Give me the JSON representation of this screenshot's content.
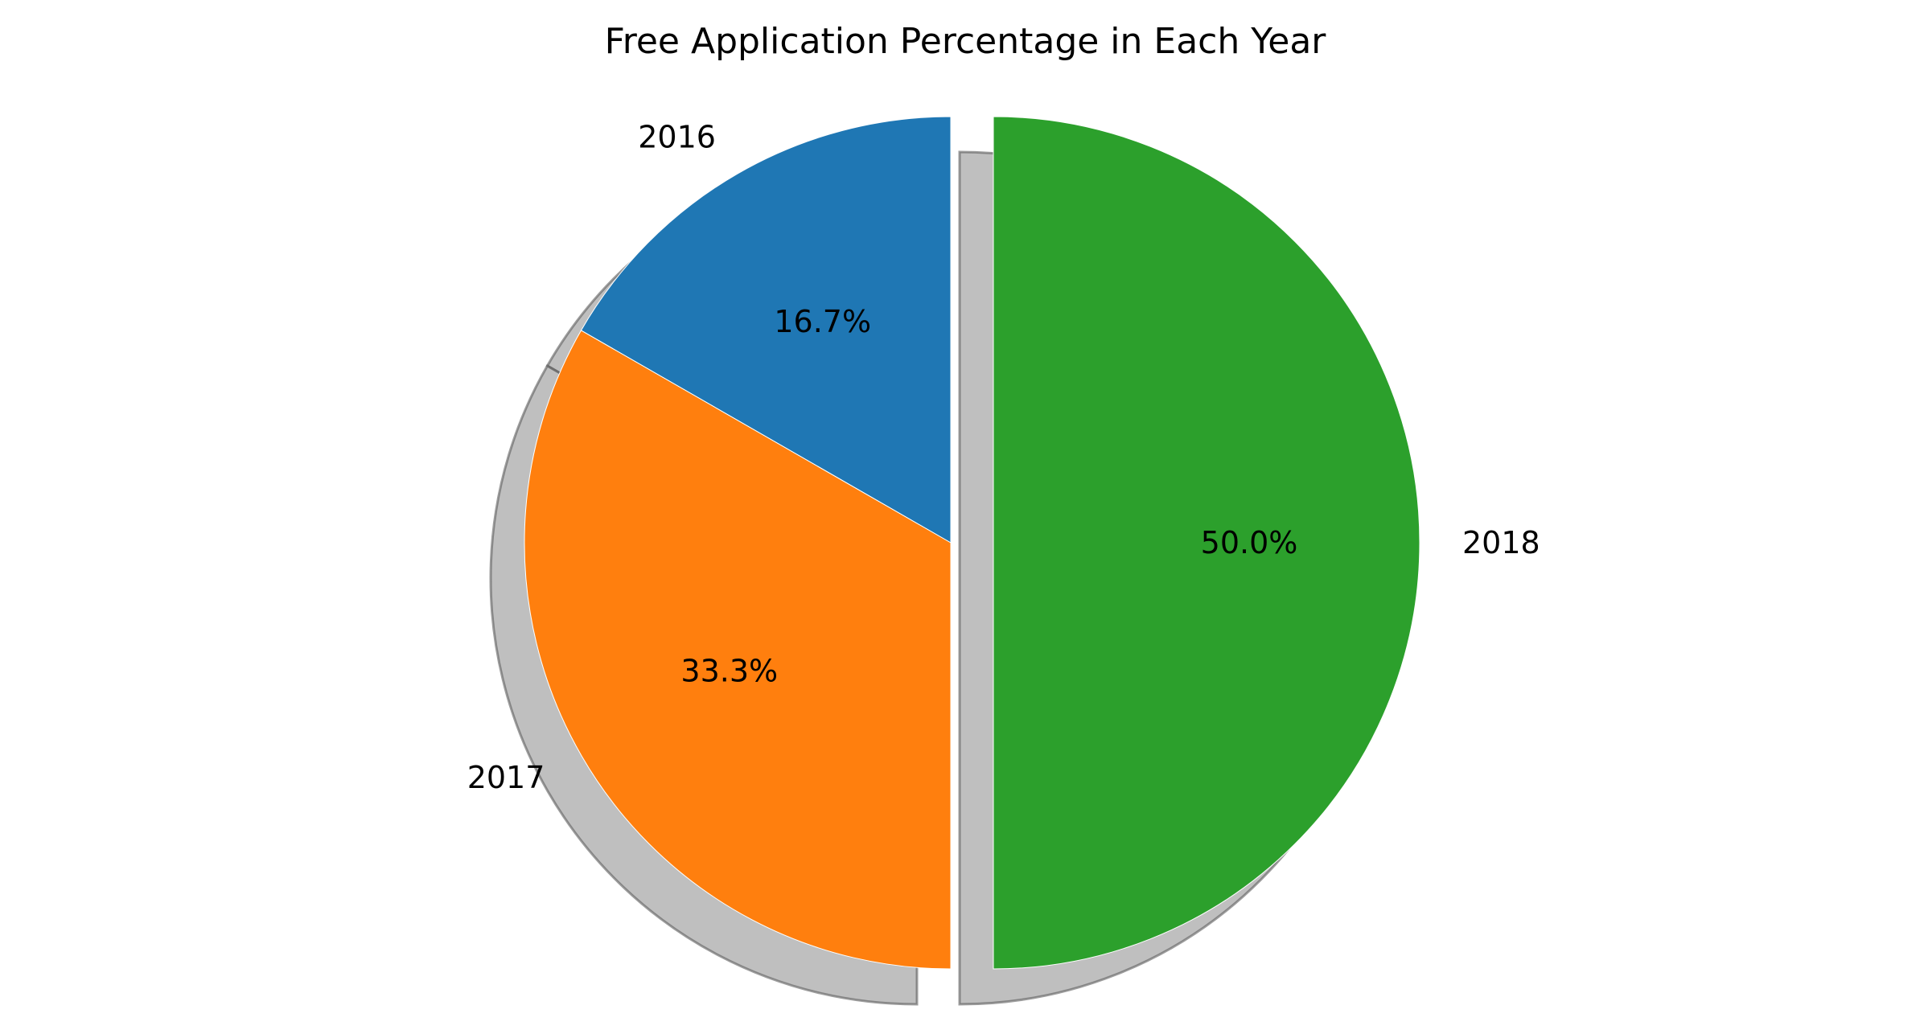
{
  "chart_data": {
    "type": "pie",
    "title": "Free Application Percentage in Each Year",
    "categories": [
      "2016",
      "2017",
      "2018"
    ],
    "values": [
      16.7,
      33.3,
      50.0
    ],
    "percent_labels": [
      "16.7%",
      "33.3%",
      "50.0%"
    ],
    "colors": [
      "#1f77b4",
      "#ff7f0e",
      "#2ca02c"
    ],
    "explode": [
      0,
      0,
      0.1
    ],
    "shadow": true,
    "start_angle_deg": 90,
    "direction": "counterclockwise"
  }
}
